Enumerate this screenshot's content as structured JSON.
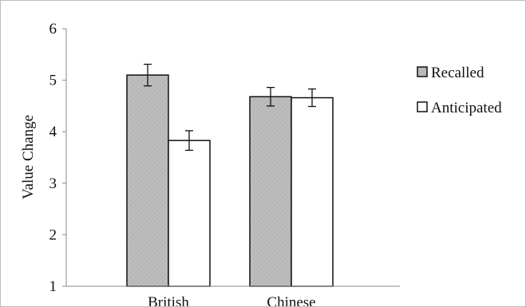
{
  "chart_data": {
    "type": "bar",
    "title": "",
    "xlabel": "",
    "ylabel": "Value Change",
    "categories": [
      "British",
      "Chinese"
    ],
    "series": [
      {
        "name": "Recalled",
        "values": [
          5.1,
          4.68
        ],
        "errors": [
          0.21,
          0.18
        ],
        "fill": "#bdbdbd",
        "pattern": "diagonal-hatch"
      },
      {
        "name": "Anticipated",
        "values": [
          3.83,
          4.66
        ],
        "errors": [
          0.19,
          0.17
        ],
        "fill": "#ffffff"
      }
    ],
    "ylim": [
      1,
      6
    ],
    "yticks": [
      "1",
      "2",
      "3",
      "4",
      "5",
      "6"
    ],
    "grid": false,
    "legend_position": "right",
    "colors": {
      "bar_stroke": "#111111",
      "axis": "#888888",
      "recalled_fill": "#bdbdbd",
      "anticipated_fill": "#ffffff"
    }
  }
}
